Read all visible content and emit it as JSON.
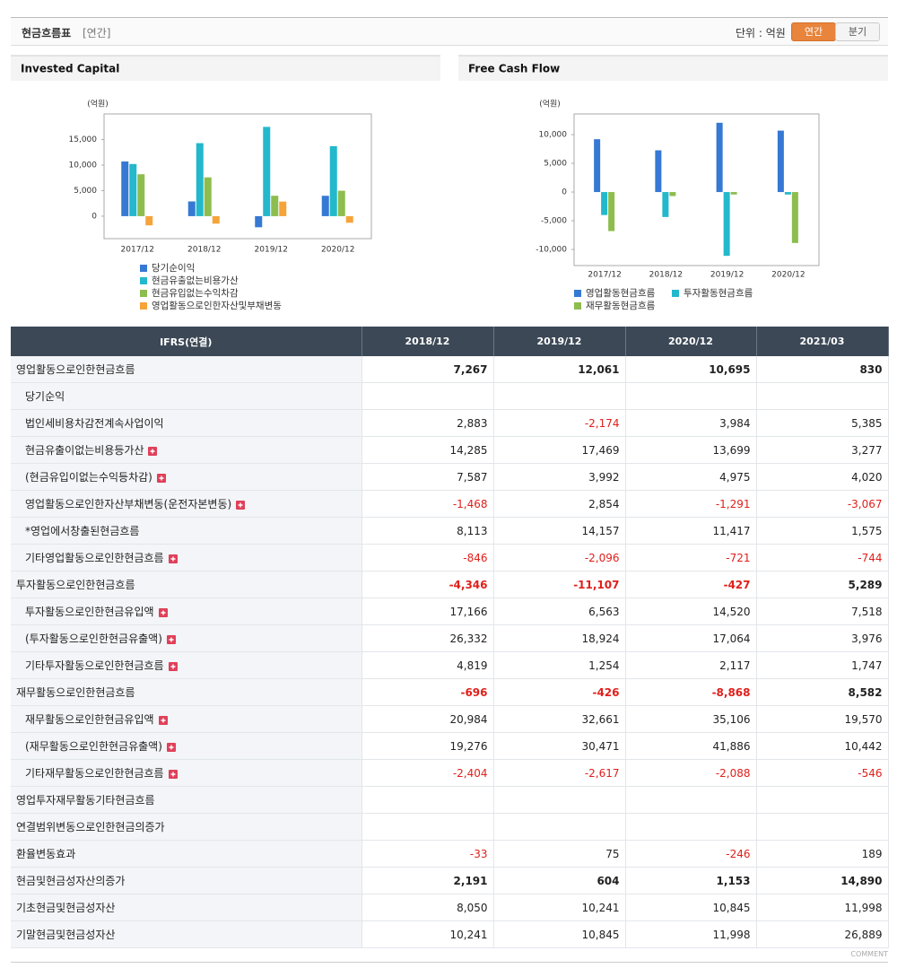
{
  "header": {
    "title": "현금흐름표",
    "period": "[연간]",
    "unit": "단위 : 억원",
    "tabs": [
      "연간",
      "분기"
    ]
  },
  "chart_data": [
    {
      "type": "bar",
      "title": "Invested Capital",
      "y_label": "(억원)",
      "categories": [
        "2017/12",
        "2018/12",
        "2019/12",
        "2020/12"
      ],
      "series": [
        {
          "name": "당기순이익",
          "color": "#3579d4",
          "values": [
            10700,
            2883,
            -2174,
            3984
          ]
        },
        {
          "name": "현금유출없는비용가산",
          "color": "#23b8cc",
          "values": [
            10200,
            14285,
            17469,
            13699
          ]
        },
        {
          "name": "현금유입없는수익차감",
          "color": "#8dbd4e",
          "values": [
            8200,
            7587,
            3992,
            4975
          ]
        },
        {
          "name": "영업활동으로인한자산및부채변동",
          "color": "#f5a43a",
          "values": [
            -1800,
            -1468,
            2854,
            -1291
          ]
        }
      ],
      "ylim": [
        -4400,
        20000
      ],
      "yticks": [
        0,
        {
          "value": 5000,
          "label": "5,000"
        },
        {
          "value": 10000,
          "label": "10,000"
        },
        {
          "value": 15000,
          "label": "15,000"
        }
      ]
    },
    {
      "type": "bar",
      "title": "Free Cash Flow",
      "y_label": "(억원)",
      "categories": [
        "2017/12",
        "2018/12",
        "2019/12",
        "2020/12"
      ],
      "series": [
        {
          "name": "영업활동현금흐름",
          "color": "#3579d4",
          "values": [
            9200,
            7267,
            12061,
            10695
          ]
        },
        {
          "name": "투자활동현금흐름",
          "color": "#23b8cc",
          "values": [
            -4000,
            -4346,
            -11107,
            -427
          ]
        },
        {
          "name": "재무활동현금흐름",
          "color": "#8dbd4e",
          "values": [
            -6800,
            -696,
            -426,
            -8868
          ]
        }
      ],
      "ylim": [
        -12800,
        13600
      ],
      "yticks": [
        {
          "value": -10000,
          "label": "-10,000"
        },
        {
          "value": -5000,
          "label": "-5,000"
        },
        0,
        {
          "value": 5000,
          "label": "5,000"
        },
        {
          "value": 10000,
          "label": "10,000"
        }
      ]
    }
  ],
  "table": {
    "columns": [
      "IFRS(연결)",
      "2018/12",
      "2019/12",
      "2020/12",
      "2021/03"
    ],
    "rows": [
      {
        "label": "영업활동으로인한현금흐름",
        "bold": true,
        "values": [
          "7,267",
          "12,061",
          "10,695",
          "830"
        ],
        "children": [
          {
            "label": "당기순익",
            "values": [
              null,
              null,
              null,
              null
            ]
          },
          {
            "label": "법인세비용차감전계속사업이익",
            "values": [
              "2,883",
              "-2,174",
              "3,984",
              "5,385"
            ]
          },
          {
            "label": "현금유출이없는비용등가산",
            "expandable": true,
            "values": [
              "14,285",
              "17,469",
              "13,699",
              "3,277"
            ]
          },
          {
            "label": "(현금유입이없는수익등차감)",
            "expandable": true,
            "values": [
              "7,587",
              "3,992",
              "4,975",
              "4,020"
            ]
          },
          {
            "label": "영업활동으로인한자산부채변동(운전자본변동)",
            "expandable": true,
            "values": [
              "-1,468",
              "2,854",
              "-1,291",
              "-3,067"
            ]
          },
          {
            "label": "*영업에서창출된현금흐름",
            "values": [
              "8,113",
              "14,157",
              "11,417",
              "1,575"
            ]
          },
          {
            "label": "기타영업활동으로인한현금흐름",
            "expandable": true,
            "values": [
              "-846",
              "-2,096",
              "-721",
              "-744"
            ]
          }
        ]
      },
      {
        "label": "투자활동으로인한현금흐름",
        "bold": true,
        "values": [
          "-4,346",
          "-11,107",
          "-427",
          "5,289"
        ],
        "children": [
          {
            "label": "투자활동으로인한현금유입액",
            "expandable": true,
            "values": [
              "17,166",
              "6,563",
              "14,520",
              "7,518"
            ]
          },
          {
            "label": "(투자활동으로인한현금유출액)",
            "expandable": true,
            "values": [
              "26,332",
              "18,924",
              "17,064",
              "3,976"
            ]
          },
          {
            "label": "기타투자활동으로인한현금흐름",
            "expandable": true,
            "values": [
              "4,819",
              "1,254",
              "2,117",
              "1,747"
            ]
          }
        ]
      },
      {
        "label": "재무활동으로인한현금흐름",
        "bold": true,
        "values": [
          "-696",
          "-426",
          "-8,868",
          "8,582"
        ],
        "children": [
          {
            "label": "재무활동으로인한현금유입액",
            "expandable": true,
            "values": [
              "20,984",
              "32,661",
              "35,106",
              "19,570"
            ]
          },
          {
            "label": "(재무활동으로인한현금유출액)",
            "expandable": true,
            "values": [
              "19,276",
              "30,471",
              "41,886",
              "10,442"
            ]
          },
          {
            "label": "기타재무활동으로인한현금흐름",
            "expandable": true,
            "values": [
              "-2,404",
              "-2,617",
              "-2,088",
              "-546"
            ]
          }
        ]
      },
      {
        "label": "영업투자재무활동기타현금흐름",
        "values": [
          null,
          null,
          null,
          null
        ]
      },
      {
        "label": "연결범위변동으로인한현금의증가",
        "values": [
          null,
          null,
          null,
          null
        ]
      },
      {
        "label": "환율변동효과",
        "values": [
          "-33",
          "75",
          "-246",
          "189"
        ]
      },
      {
        "label": "현금및현금성자산의증가",
        "bold": true,
        "values": [
          "2,191",
          "604",
          "1,153",
          "14,890"
        ]
      },
      {
        "label": "기초현금및현금성자산",
        "values": [
          "8,050",
          "10,241",
          "10,845",
          "11,998"
        ]
      },
      {
        "label": "기말현금및현금성자산",
        "values": [
          "10,241",
          "10,845",
          "11,998",
          "26,889"
        ]
      }
    ]
  },
  "footer": "COMMENT"
}
